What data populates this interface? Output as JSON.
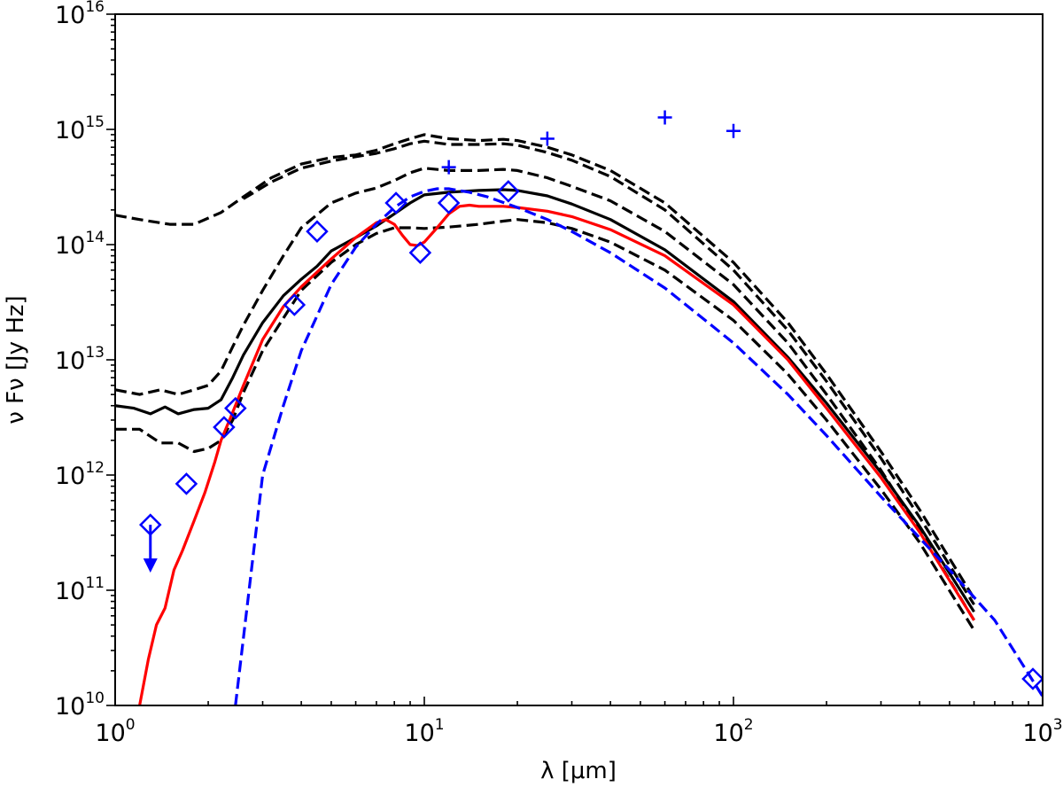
{
  "chart_data": {
    "type": "line",
    "xscale": "log",
    "yscale": "log",
    "xlim": [
      1,
      1000
    ],
    "ylim": [
      10000000000.0,
      1e+16
    ],
    "xlabel": "λ [μm]",
    "ylabel": "ν Fν [Jy Hz]",
    "x_tick_labels": [
      {
        "value": 1,
        "base": "10",
        "exp": "0"
      },
      {
        "value": 10,
        "base": "10",
        "exp": "1"
      },
      {
        "value": 100,
        "base": "10",
        "exp": "2"
      },
      {
        "value": 1000,
        "base": "10",
        "exp": "3"
      }
    ],
    "y_tick_labels": [
      {
        "value": 10000000000.0,
        "base": "10",
        "exp": "10"
      },
      {
        "value": 100000000000.0,
        "base": "10",
        "exp": "11"
      },
      {
        "value": 1000000000000.0,
        "base": "10",
        "exp": "12"
      },
      {
        "value": 10000000000000.0,
        "base": "10",
        "exp": "13"
      },
      {
        "value": 100000000000000.0,
        "base": "10",
        "exp": "14"
      },
      {
        "value": 1000000000000000.0,
        "base": "10",
        "exp": "15"
      },
      {
        "value": 1e+16,
        "base": "10",
        "exp": "16"
      }
    ],
    "colors": {
      "black": "#000000",
      "red": "#ff0000",
      "blue": "#0000ff"
    },
    "series": [
      {
        "name": "model-dashed-1",
        "color": "#000000",
        "style": "dashed",
        "x": [
          1.0,
          1.2,
          1.5,
          1.8,
          2.2,
          2.6,
          3.2,
          4,
          5,
          6,
          7,
          8,
          9,
          10,
          12,
          15,
          18,
          20,
          25,
          30,
          40,
          60,
          100,
          150,
          200,
          300,
          400,
          600
        ],
        "y": [
          180000000000000.0,
          165000000000000.0,
          150000000000000.0,
          150000000000000.0,
          190000000000000.0,
          260000000000000.0,
          380000000000000.0,
          500000000000000.0,
          570000000000000.0,
          600000000000000.0,
          660000000000000.0,
          750000000000000.0,
          830000000000000.0,
          900000000000000.0,
          830000000000000.0,
          800000000000000.0,
          820000000000000.0,
          800000000000000.0,
          700000000000000.0,
          600000000000000.0,
          440000000000000.0,
          230000000000000.0,
          70000000000000.0,
          21000000000000.0,
          7500000000000.0,
          1600000000000.0,
          500000000000.0,
          85000000000.0
        ]
      },
      {
        "name": "model-dashed-2",
        "color": "#000000",
        "style": "dashed",
        "x": [
          2.6,
          3.2,
          4,
          5,
          6,
          7,
          8,
          9,
          10,
          12,
          15,
          18,
          20,
          25,
          30,
          40,
          60,
          100,
          150,
          200,
          300,
          400,
          600
        ],
        "y": [
          250000000000000.0,
          350000000000000.0,
          460000000000000.0,
          530000000000000.0,
          580000000000000.0,
          620000000000000.0,
          680000000000000.0,
          750000000000000.0,
          790000000000000.0,
          740000000000000.0,
          740000000000000.0,
          750000000000000.0,
          730000000000000.0,
          630000000000000.0,
          540000000000000.0,
          390000000000000.0,
          200000000000000.0,
          60000000000000.0,
          18000000000000.0,
          6500000000000.0,
          1400000000000.0,
          430000000000.0,
          75000000000.0
        ]
      },
      {
        "name": "model-dashed-3",
        "color": "#000000",
        "style": "dashed",
        "x": [
          1.0,
          1.2,
          1.4,
          1.6,
          1.8,
          2.0,
          2.2,
          2.4,
          2.6,
          3.0,
          3.5,
          4,
          5,
          6,
          7,
          8,
          9,
          10,
          12,
          15,
          18,
          20,
          25,
          30,
          40,
          60,
          100,
          150,
          200,
          300,
          400,
          600
        ],
        "y": [
          5500000000000.0,
          5000000000000.0,
          5500000000000.0,
          5000000000000.0,
          5500000000000.0,
          6000000000000.0,
          8000000000000.0,
          13000000000000.0,
          20000000000000.0,
          40000000000000.0,
          80000000000000.0,
          140000000000000.0,
          230000000000000.0,
          280000000000000.0,
          310000000000000.0,
          360000000000000.0,
          420000000000000.0,
          460000000000000.0,
          440000000000000.0,
          440000000000000.0,
          450000000000000.0,
          440000000000000.0,
          380000000000000.0,
          320000000000000.0,
          240000000000000.0,
          130000000000000.0,
          45000000000000.0,
          14000000000000.0,
          5000000000000.0,
          1100000000000.0,
          330000000000.0,
          55000000000.0
        ]
      },
      {
        "name": "model-solid-black",
        "color": "#000000",
        "style": "solid",
        "x": [
          1.0,
          1.15,
          1.3,
          1.45,
          1.6,
          1.8,
          2.0,
          2.2,
          2.4,
          2.6,
          3.0,
          3.5,
          4,
          4.5,
          5,
          6,
          7,
          8,
          9,
          10,
          12,
          15,
          18,
          20,
          25,
          30,
          40,
          60,
          100,
          150,
          200,
          300,
          400,
          600
        ],
        "y": [
          4000000000000.0,
          3800000000000.0,
          3400000000000.0,
          3900000000000.0,
          3400000000000.0,
          3700000000000.0,
          3800000000000.0,
          4500000000000.0,
          7000000000000.0,
          11000000000000.0,
          21000000000000.0,
          36000000000000.0,
          50000000000000.0,
          65000000000000.0,
          88000000000000.0,
          115000000000000.0,
          145000000000000.0,
          185000000000000.0,
          230000000000000.0,
          270000000000000.0,
          285000000000000.0,
          295000000000000.0,
          300000000000000.0,
          295000000000000.0,
          265000000000000.0,
          225000000000000.0,
          165000000000000.0,
          90000000000000.0,
          32000000000000.0,
          10500000000000.0,
          4200000000000.0,
          1050000000000.0,
          360000000000.0,
          65000000000.0
        ]
      },
      {
        "name": "model-dashed-4",
        "color": "#000000",
        "style": "dashed",
        "x": [
          1.0,
          1.2,
          1.4,
          1.6,
          1.8,
          2.0,
          2.2,
          2.4,
          2.6,
          3.0,
          3.5,
          4,
          5,
          6,
          7,
          8,
          9,
          10,
          12,
          15,
          18,
          20,
          25,
          30,
          40,
          60,
          100,
          150,
          200,
          300,
          400,
          600
        ],
        "y": [
          2500000000000.0,
          2500000000000.0,
          1900000000000.0,
          1900000000000.0,
          1600000000000.0,
          1700000000000.0,
          2000000000000.0,
          3000000000000.0,
          5200000000000.0,
          12000000000000.0,
          23000000000000.0,
          40000000000000.0,
          70000000000000.0,
          100000000000000.0,
          125000000000000.0,
          140000000000000.0,
          140000000000000.0,
          138000000000000.0,
          142000000000000.0,
          150000000000000.0,
          160000000000000.0,
          165000000000000.0,
          155000000000000.0,
          138000000000000.0,
          105000000000000.0,
          60000000000000.0,
          22000000000000.0,
          7500000000000.0,
          3000000000000.0,
          750000000000.0,
          260000000000.0,
          45000000000.0
        ]
      },
      {
        "name": "best-fit-model-red",
        "color": "#ff0000",
        "style": "solid",
        "x": [
          1.2,
          1.28,
          1.36,
          1.45,
          1.55,
          1.65,
          1.8,
          1.95,
          2.1,
          2.2,
          2.4,
          2.6,
          3.0,
          3.5,
          4,
          5,
          6,
          7,
          7.5,
          8,
          8.5,
          9,
          9.5,
          10,
          11,
          12,
          13,
          14,
          15,
          18,
          20,
          25,
          30,
          40,
          60,
          100,
          150,
          200,
          300,
          400,
          600
        ],
        "y": [
          10000000000.0,
          25000000000.0,
          50000000000.0,
          70000000000.0,
          150000000000.0,
          220000000000.0,
          400000000000.0,
          700000000000.0,
          1300000000000.0,
          2000000000000.0,
          3500000000000.0,
          6000000000000.0,
          15000000000000.0,
          29000000000000.0,
          43000000000000.0,
          75000000000000.0,
          115000000000000.0,
          155000000000000.0,
          165000000000000.0,
          150000000000000.0,
          120000000000000.0,
          100000000000000.0,
          98000000000000.0,
          105000000000000.0,
          140000000000000.0,
          185000000000000.0,
          215000000000000.0,
          220000000000000.0,
          215000000000000.0,
          215000000000000.0,
          210000000000000.0,
          195000000000000.0,
          175000000000000.0,
          135000000000000.0,
          80000000000000.0,
          30000000000000.0,
          10000000000000.0,
          3800000000000.0,
          950000000000.0,
          320000000000.0,
          55000000000.0
        ]
      },
      {
        "name": "blackbody-blue-dashed",
        "color": "#0000ff",
        "style": "dashed",
        "x": [
          2.45,
          3.0,
          3.5,
          4,
          5,
          6,
          7,
          8,
          9,
          10,
          11,
          12,
          14,
          16,
          20,
          25,
          30,
          40,
          60,
          100,
          150,
          200,
          300,
          500,
          700,
          1000
        ],
        "y": [
          10000000000.0,
          1000000000000.0,
          4000000000000.0,
          12000000000000.0,
          45000000000000.0,
          95000000000000.0,
          150000000000000.0,
          210000000000000.0,
          260000000000000.0,
          290000000000000.0,
          305000000000000.0,
          305000000000000.0,
          285000000000000.0,
          260000000000000.0,
          210000000000000.0,
          165000000000000.0,
          130000000000000.0,
          85000000000000.0,
          42000000000000.0,
          14000000000000.0,
          5000000000000.0,
          2200000000000.0,
          650000000000.0,
          150000000000.0,
          55000000000.0,
          12000000000.0
        ]
      }
    ],
    "markers_diamond": {
      "color": "#0000ff",
      "points": [
        {
          "x": 1.3,
          "y": 370000000000.0,
          "upper_limit": true
        },
        {
          "x": 1.7,
          "y": 840000000000.0
        },
        {
          "x": 2.25,
          "y": 2600000000000.0
        },
        {
          "x": 2.45,
          "y": 3800000000000.0
        },
        {
          "x": 3.8,
          "y": 30000000000000.0
        },
        {
          "x": 4.5,
          "y": 130000000000000.0
        },
        {
          "x": 8.1,
          "y": 230000000000000.0
        },
        {
          "x": 9.7,
          "y": 85000000000000.0
        },
        {
          "x": 12.0,
          "y": 230000000000000.0
        },
        {
          "x": 18.7,
          "y": 290000000000000.0
        },
        {
          "x": 930,
          "y": 17000000000.0
        }
      ]
    },
    "markers_plus": {
      "color": "#0000ff",
      "points": [
        {
          "x": 12.0,
          "y": 470000000000000.0
        },
        {
          "x": 25.0,
          "y": 830000000000000.0
        },
        {
          "x": 60.0,
          "y": 1270000000000000.0
        },
        {
          "x": 100.0,
          "y": 970000000000000.0
        }
      ]
    }
  }
}
